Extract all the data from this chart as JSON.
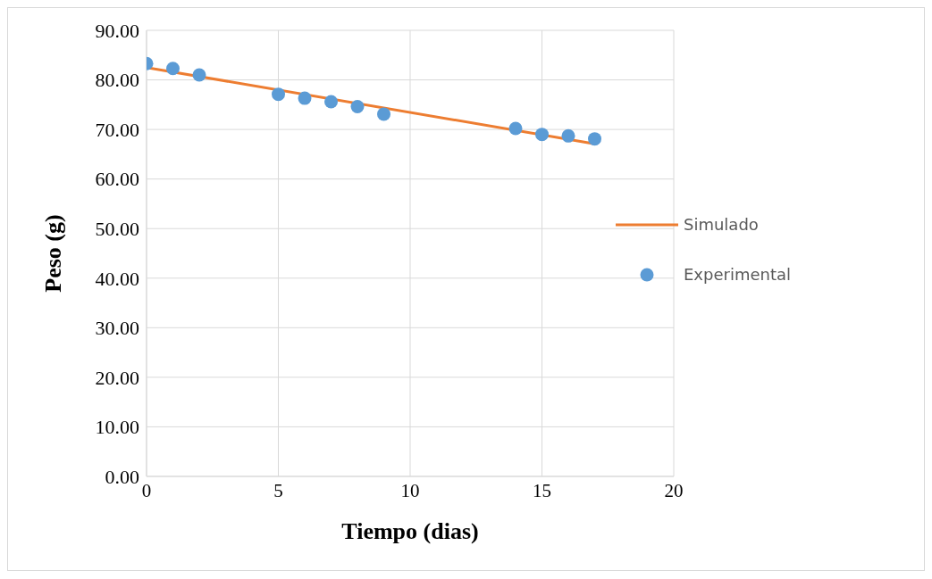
{
  "chart_data": {
    "type": "scatter",
    "xlabel": "Tiempo (dias)",
    "ylabel": "Peso (g)",
    "series": [
      {
        "name": "Simulado",
        "type": "line",
        "color": "#ed7d31",
        "x": [
          0,
          17
        ],
        "values": [
          82.5,
          67.1
        ],
        "marker": "none"
      },
      {
        "name": "Experimental",
        "color": "#5b9bd5",
        "x": [
          0,
          1,
          2,
          5,
          6,
          7,
          8,
          9,
          14,
          15,
          16,
          17
        ],
        "values": [
          83.3,
          82.3,
          81.0,
          77.1,
          76.3,
          75.6,
          74.6,
          73.1,
          70.2,
          69.0,
          68.7,
          68.1
        ],
        "marker": "circle"
      }
    ],
    "xlim": [
      0,
      20
    ],
    "xticks": [
      0,
      5,
      10,
      15,
      20
    ],
    "ylim": [
      0,
      90
    ],
    "yticks": [
      {
        "value": 0,
        "label": "0.00"
      },
      {
        "value": 10,
        "label": "10.00"
      },
      {
        "value": 20,
        "label": "20.00"
      },
      {
        "value": 30,
        "label": "30.00"
      },
      {
        "value": 40,
        "label": "40.00"
      },
      {
        "value": 50,
        "label": "50.00"
      },
      {
        "value": 60,
        "label": "60.00"
      },
      {
        "value": 70,
        "label": "70.00"
      },
      {
        "value": 80,
        "label": "80.00"
      },
      {
        "value": 90,
        "label": "90.00"
      }
    ],
    "grid": true,
    "legend": "right"
  }
}
